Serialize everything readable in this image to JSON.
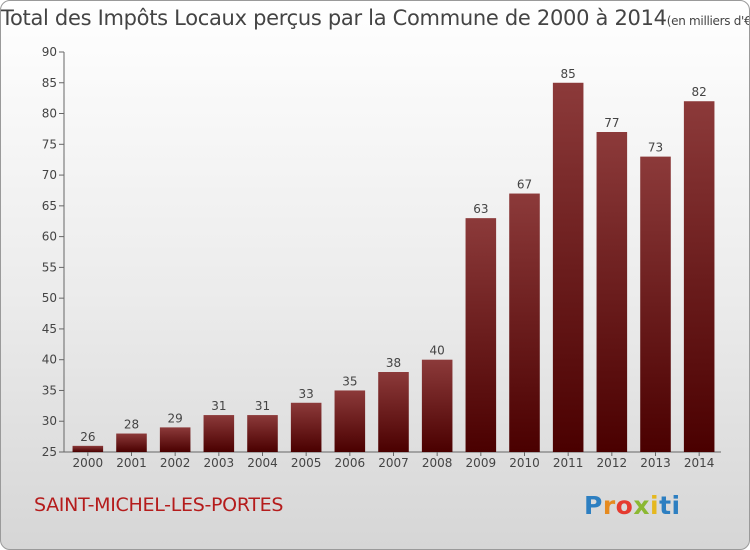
{
  "title": "Total des Impôts Locaux perçus par la Commune de 2000 à 2014",
  "title_unit": "(en milliers d'€)",
  "commune": "SAINT-MICHEL-LES-PORTES",
  "logo": "Proxiti",
  "logo_letters": [
    "P",
    "r",
    "o",
    "x",
    "i",
    "ti"
  ],
  "colors": {
    "bar_top": "#8c3a3a",
    "bar_bottom": "#4a0000",
    "axis": "#666666",
    "commune": "#b51c1c"
  },
  "chart_data": {
    "type": "bar",
    "title": "Total des Impôts Locaux perçus par la Commune de 2000 à 2014",
    "xlabel": "",
    "ylabel": "",
    "categories": [
      "2000",
      "2001",
      "2002",
      "2003",
      "2004",
      "2005",
      "2006",
      "2007",
      "2008",
      "2009",
      "2010",
      "2011",
      "2012",
      "2013",
      "2014"
    ],
    "values": [
      26,
      28,
      29,
      31,
      31,
      33,
      35,
      38,
      40,
      63,
      67,
      85,
      77,
      73,
      82
    ],
    "ylim": [
      25,
      90
    ],
    "yticks": [
      25,
      30,
      35,
      40,
      45,
      50,
      55,
      60,
      65,
      70,
      75,
      80,
      85,
      90
    ],
    "grid": false,
    "data_labels": true
  }
}
